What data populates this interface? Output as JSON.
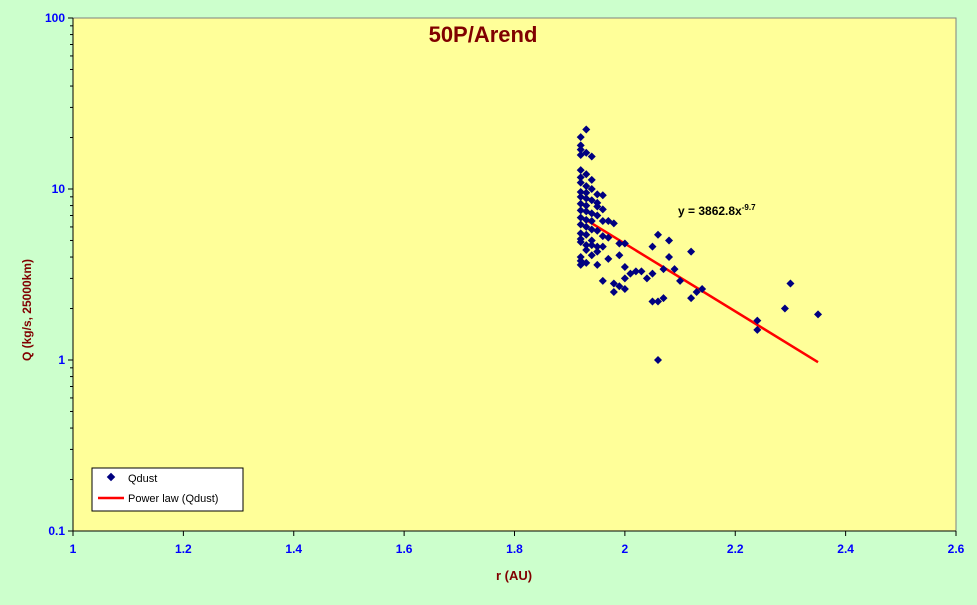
{
  "chart_data": {
    "type": "scatter",
    "title": "50P/Arend",
    "xlabel": "r (AU)",
    "ylabel": "Q (kg/s, 25000km)",
    "xlim": [
      1,
      2.6
    ],
    "ylim": [
      0.1,
      100
    ],
    "yscale": "log",
    "x_ticks": [
      "1",
      "1.2",
      "1.4",
      "1.6",
      "1.8",
      "2",
      "2.2",
      "2.4",
      "2.6"
    ],
    "y_ticks": [
      "0.1",
      "1",
      "10",
      "100"
    ],
    "grid": false,
    "legend_position": "bottom-left",
    "colors": {
      "plot_bg": "#ffff99",
      "page_bg": "#ccffcc",
      "points": "#000080",
      "fit_line": "#ff0000",
      "title": "#800000",
      "axis_label": "#800000",
      "tick_label": "#0000ff"
    },
    "series": [
      {
        "name": "Qdust",
        "kind": "scatter",
        "points": [
          [
            1.93,
            22.3
          ],
          [
            1.92,
            20.1
          ],
          [
            1.92,
            18.0
          ],
          [
            1.92,
            17.0
          ],
          [
            1.93,
            16.3
          ],
          [
            1.92,
            15.8
          ],
          [
            1.94,
            15.5
          ],
          [
            1.92,
            12.9
          ],
          [
            1.93,
            12.2
          ],
          [
            1.92,
            11.7
          ],
          [
            1.94,
            11.3
          ],
          [
            1.92,
            10.9
          ],
          [
            1.93,
            10.4
          ],
          [
            1.94,
            10.0
          ],
          [
            1.92,
            9.6
          ],
          [
            1.93,
            9.5
          ],
          [
            1.95,
            9.3
          ],
          [
            1.96,
            9.2
          ],
          [
            1.92,
            9.0
          ],
          [
            1.93,
            8.8
          ],
          [
            1.94,
            8.6
          ],
          [
            1.95,
            8.3
          ],
          [
            1.92,
            8.2
          ],
          [
            1.93,
            8.0
          ],
          [
            1.95,
            7.9
          ],
          [
            1.96,
            7.6
          ],
          [
            1.92,
            7.5
          ],
          [
            1.93,
            7.4
          ],
          [
            1.94,
            7.2
          ],
          [
            1.95,
            7.0
          ],
          [
            1.92,
            6.8
          ],
          [
            1.93,
            6.6
          ],
          [
            1.94,
            6.5
          ],
          [
            1.96,
            6.5
          ],
          [
            1.97,
            6.5
          ],
          [
            1.98,
            6.3
          ],
          [
            1.92,
            6.2
          ],
          [
            1.93,
            6.0
          ],
          [
            1.94,
            5.8
          ],
          [
            1.95,
            5.7
          ],
          [
            1.92,
            5.5
          ],
          [
            1.93,
            5.4
          ],
          [
            1.96,
            5.3
          ],
          [
            1.92,
            5.1
          ],
          [
            1.94,
            5.0
          ],
          [
            1.97,
            5.2
          ],
          [
            1.92,
            4.9
          ],
          [
            1.93,
            4.7
          ],
          [
            1.94,
            4.7
          ],
          [
            1.95,
            4.6
          ],
          [
            1.96,
            4.6
          ],
          [
            1.99,
            4.8
          ],
          [
            2.0,
            4.8
          ],
          [
            1.93,
            4.4
          ],
          [
            1.95,
            4.3
          ],
          [
            1.94,
            4.1
          ],
          [
            1.92,
            4.0
          ],
          [
            1.92,
            3.8
          ],
          [
            1.92,
            3.6
          ],
          [
            1.93,
            3.7
          ],
          [
            1.95,
            3.6
          ],
          [
            1.97,
            3.9
          ],
          [
            1.99,
            4.1
          ],
          [
            2.0,
            3.5
          ],
          [
            2.02,
            3.3
          ],
          [
            2.03,
            3.3
          ],
          [
            2.04,
            3.0
          ],
          [
            2.05,
            3.2
          ],
          [
            2.07,
            3.4
          ],
          [
            1.96,
            2.9
          ],
          [
            1.98,
            2.8
          ],
          [
            1.99,
            2.7
          ],
          [
            2.0,
            2.6
          ],
          [
            1.98,
            2.5
          ],
          [
            2.01,
            3.2
          ],
          [
            2.05,
            2.2
          ],
          [
            2.07,
            2.3
          ],
          [
            2.05,
            4.6
          ],
          [
            2.06,
            5.4
          ],
          [
            2.08,
            5.0
          ],
          [
            2.08,
            4.0
          ],
          [
            2.09,
            3.4
          ],
          [
            2.1,
            2.9
          ],
          [
            2.12,
            4.3
          ],
          [
            2.12,
            2.3
          ],
          [
            2.13,
            2.5
          ],
          [
            2.06,
            2.2
          ],
          [
            2.06,
            1.0
          ],
          [
            2.24,
            1.7
          ],
          [
            2.24,
            1.5
          ],
          [
            2.29,
            2.0
          ],
          [
            2.3,
            2.8
          ],
          [
            2.35,
            1.85
          ],
          [
            2.14,
            2.6
          ],
          [
            2.0,
            3.0
          ]
        ]
      },
      {
        "name": "Power law (Qdust)",
        "kind": "line",
        "coefficient": 3862.8,
        "exponent": -9.7,
        "x_range": [
          1.92,
          2.35
        ],
        "equation": "y = 3862.8x",
        "equation_exp": "-9.7"
      }
    ]
  }
}
